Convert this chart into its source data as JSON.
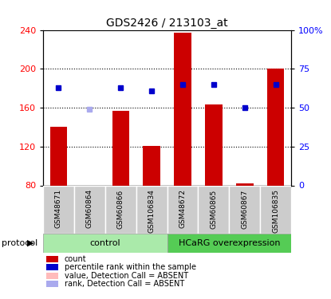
{
  "title": "GDS2426 / 213103_at",
  "samples": [
    "GSM48671",
    "GSM60864",
    "GSM60866",
    "GSM106834",
    "GSM48672",
    "GSM60865",
    "GSM60867",
    "GSM106835"
  ],
  "bar_heights": [
    140,
    80,
    157,
    121,
    237,
    163,
    82,
    200
  ],
  "bar_absent": [
    false,
    true,
    false,
    false,
    false,
    false,
    false,
    false
  ],
  "rank_values": [
    63,
    null,
    63,
    61,
    65,
    65,
    50,
    65
  ],
  "rank_absent_value": 158,
  "ylim_left": [
    80,
    240
  ],
  "ylim_right": [
    0,
    100
  ],
  "yticks_left": [
    80,
    120,
    160,
    200,
    240
  ],
  "yticks_right": [
    0,
    25,
    50,
    75,
    100
  ],
  "ytick_labels_right": [
    "0",
    "25",
    "50",
    "75",
    "100%"
  ],
  "grid_lines": [
    120,
    160,
    200
  ],
  "bar_color": "#cc0000",
  "bar_absent_color": "#ffbbbb",
  "rank_color": "#0000cc",
  "rank_absent_color": "#aaaaee",
  "control_samples": 4,
  "control_label": "control",
  "treatment_label": "HCaRG overexpression",
  "control_bg": "#aaeaaa",
  "treatment_bg": "#55cc55",
  "sample_bg": "#cccccc",
  "protocol_label": "protocol",
  "legend_items": [
    {
      "label": "count",
      "color": "#cc0000"
    },
    {
      "label": "percentile rank within the sample",
      "color": "#0000cc"
    },
    {
      "label": "value, Detection Call = ABSENT",
      "color": "#ffbbbb"
    },
    {
      "label": "rank, Detection Call = ABSENT",
      "color": "#aaaaee"
    }
  ]
}
